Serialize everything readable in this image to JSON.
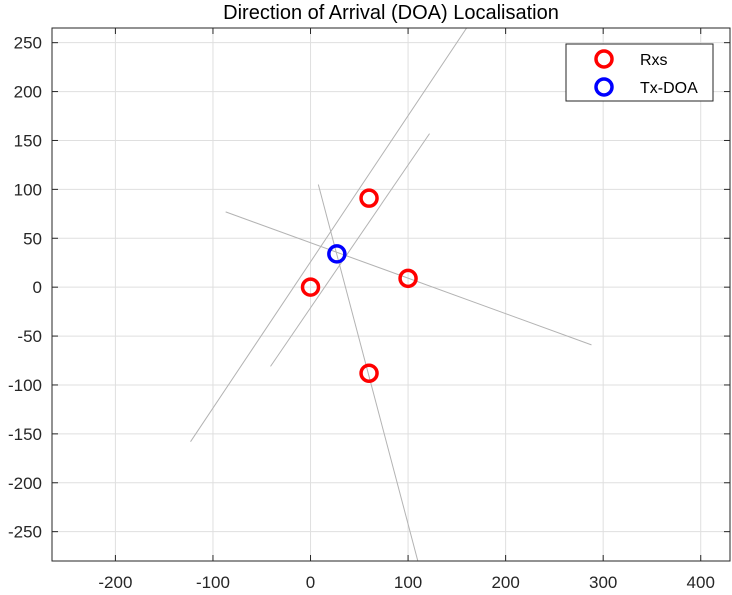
{
  "chart_data": {
    "type": "scatter",
    "title": "Direction of Arrival (DOA) Localisation",
    "xlabel": "",
    "ylabel": "",
    "xlim": [
      -265,
      430
    ],
    "ylim": [
      -280,
      265
    ],
    "xticks": [
      -200,
      -100,
      0,
      100,
      200,
      300,
      400
    ],
    "yticks": [
      -250,
      -200,
      -150,
      -100,
      -50,
      0,
      50,
      100,
      150,
      200,
      250
    ],
    "xtick_labels": [
      "-200",
      "-100",
      "0",
      "100",
      "200",
      "300",
      "400"
    ],
    "ytick_labels": [
      "-250",
      "-200",
      "-150",
      "-100",
      "-50",
      "0",
      "50",
      "100",
      "150",
      "200",
      "250"
    ],
    "grid": true,
    "legend_position": "top-right",
    "series": [
      {
        "name": "Rxs",
        "color": "#ff0000",
        "marker": "circle-open",
        "points": [
          [
            0,
            0
          ],
          [
            60,
            91
          ],
          [
            100,
            9
          ],
          [
            60,
            -88
          ]
        ]
      },
      {
        "name": "Tx-DOA",
        "color": "#0000ff",
        "marker": "circle-open",
        "points": [
          [
            27,
            34
          ]
        ]
      }
    ],
    "doa_lines": {
      "color": "#b3b3b3",
      "segments": [
        [
          [
            -123,
            -158
          ],
          [
            160,
            265
          ]
        ],
        [
          [
            -41,
            -81
          ],
          [
            122,
            157
          ]
        ],
        [
          [
            -87,
            77
          ],
          [
            288,
            -59
          ]
        ],
        [
          [
            8,
            105
          ],
          [
            110,
            -280
          ]
        ]
      ]
    }
  }
}
